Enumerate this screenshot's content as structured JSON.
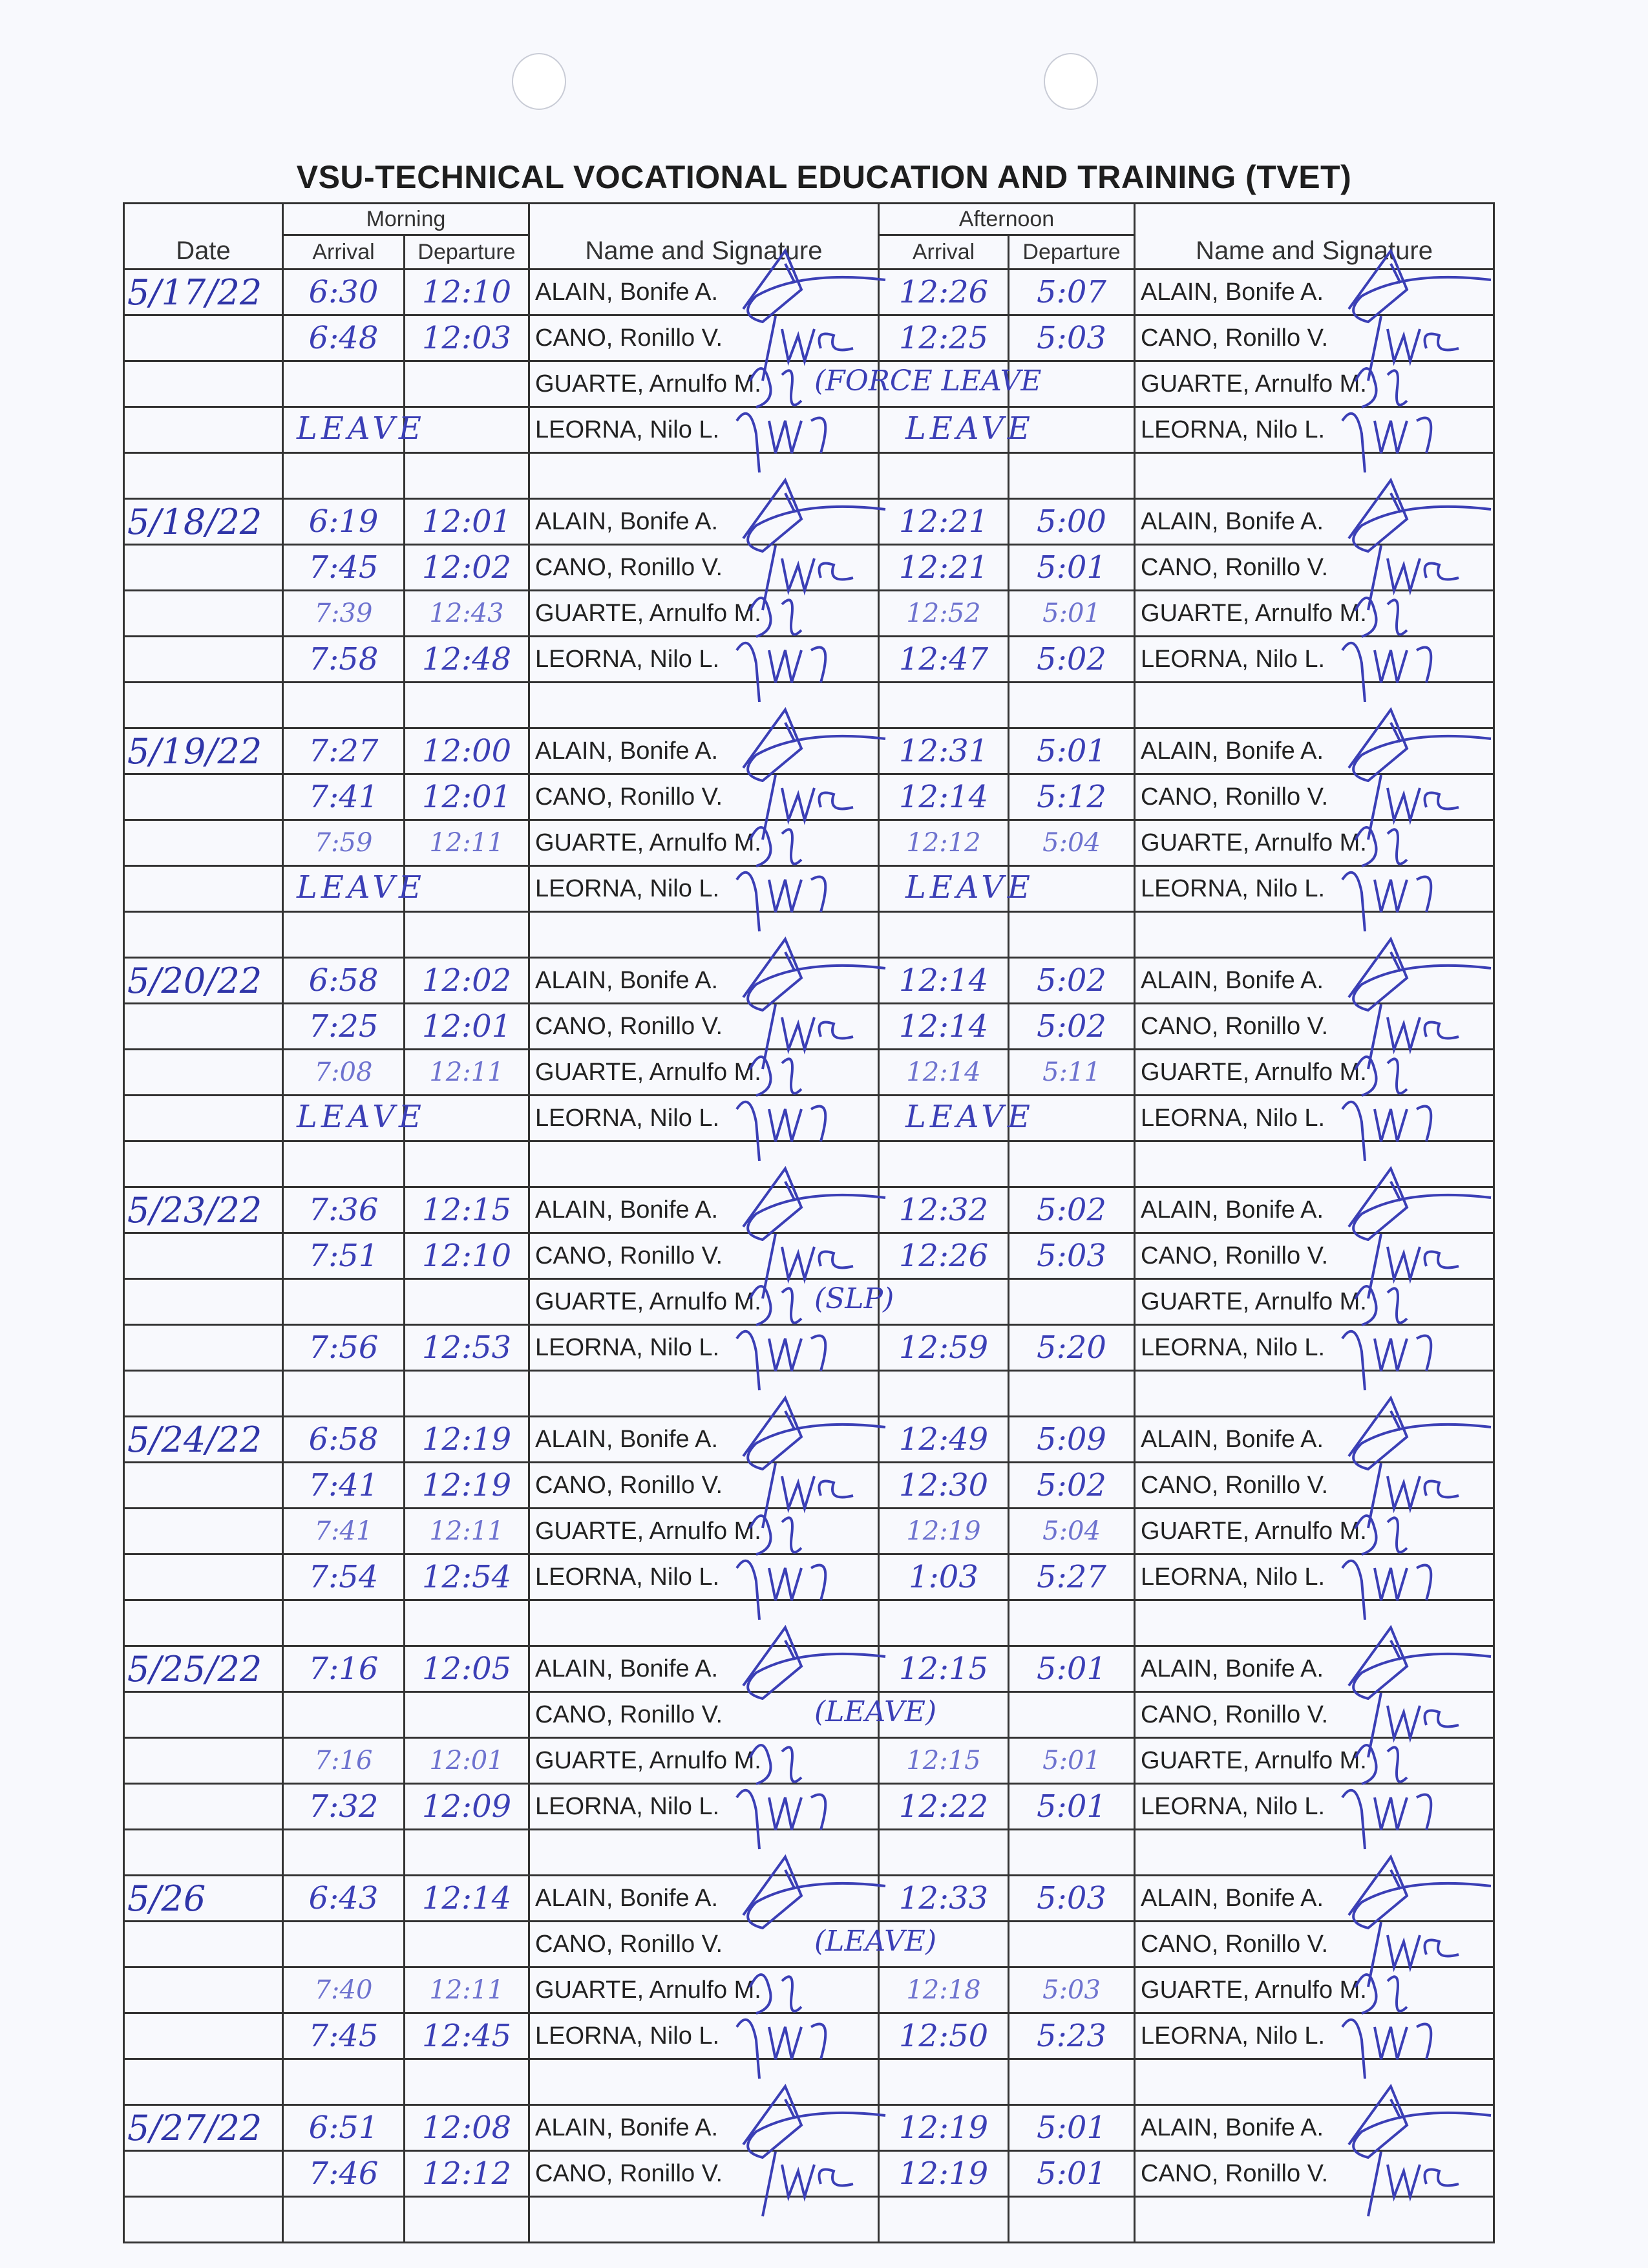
{
  "title": "VSU-TECHNICAL VOCATIONAL EDUCATION AND TRAINING (TVET)",
  "headers": {
    "date": "Date",
    "morning": "Morning",
    "afternoon": "Afternoon",
    "arrival": "Arrival",
    "departure": "Departure",
    "name_signature": "Name and Signature"
  },
  "ink_color": "#3b3fb6",
  "days": [
    {
      "date": "5/17/22",
      "rows": [
        {
          "name": "ALAIN, Bonife A.",
          "am_in": "6:30",
          "am_out": "12:10",
          "pm_in": "12:26",
          "pm_out": "5:07"
        },
        {
          "name": "CANO, Ronillo V.",
          "am_in": "6:48",
          "am_out": "12:03",
          "pm_in": "12:25",
          "pm_out": "5:03"
        },
        {
          "name": "GUARTE, Arnulfo M.",
          "am_in": "",
          "am_out": "",
          "pm_in": "",
          "pm_out": "",
          "note": "(FORCE LEAVE"
        },
        {
          "name": "LEORNA, Nilo L.",
          "am_leave": "LEAVE",
          "pm_leave": "LEAVE"
        }
      ]
    },
    {
      "date": "5/18/22",
      "rows": [
        {
          "name": "ALAIN, Bonife A.",
          "am_in": "6:19",
          "am_out": "12:01",
          "pm_in": "12:21",
          "pm_out": "5:00"
        },
        {
          "name": "CANO, Ronillo V.",
          "am_in": "7:45",
          "am_out": "12:02",
          "pm_in": "12:21",
          "pm_out": "5:01"
        },
        {
          "name": "GUARTE, Arnulfo M.",
          "am_in": "7:39",
          "am_out": "12:43",
          "pm_in": "12:52",
          "pm_out": "5:01"
        },
        {
          "name": "LEORNA, Nilo L.",
          "am_in": "7:58",
          "am_out": "12:48",
          "pm_in": "12:47",
          "pm_out": "5:02"
        }
      ]
    },
    {
      "date": "5/19/22",
      "rows": [
        {
          "name": "ALAIN, Bonife A.",
          "am_in": "7:27",
          "am_out": "12:00",
          "pm_in": "12:31",
          "pm_out": "5:01"
        },
        {
          "name": "CANO, Ronillo V.",
          "am_in": "7:41",
          "am_out": "12:01",
          "pm_in": "12:14",
          "pm_out": "5:12"
        },
        {
          "name": "GUARTE, Arnulfo M.",
          "am_in": "7:59",
          "am_out": "12:11",
          "pm_in": "12:12",
          "pm_out": "5:04"
        },
        {
          "name": "LEORNA, Nilo L.",
          "am_leave": "LEAVE",
          "pm_leave": "LEAVE"
        }
      ]
    },
    {
      "date": "5/20/22",
      "rows": [
        {
          "name": "ALAIN, Bonife A.",
          "am_in": "6:58",
          "am_out": "12:02",
          "pm_in": "12:14",
          "pm_out": "5:02"
        },
        {
          "name": "CANO, Ronillo V.",
          "am_in": "7:25",
          "am_out": "12:01",
          "pm_in": "12:14",
          "pm_out": "5:02"
        },
        {
          "name": "GUARTE, Arnulfo M.",
          "am_in": "7:08",
          "am_out": "12:11",
          "pm_in": "12:14",
          "pm_out": "5:11"
        },
        {
          "name": "LEORNA, Nilo L.",
          "am_leave": "LEAVE",
          "pm_leave": "LEAVE"
        }
      ]
    },
    {
      "date": "5/23/22",
      "rows": [
        {
          "name": "ALAIN, Bonife A.",
          "am_in": "7:36",
          "am_out": "12:15",
          "pm_in": "12:32",
          "pm_out": "5:02"
        },
        {
          "name": "CANO, Ronillo V.",
          "am_in": "7:51",
          "am_out": "12:10",
          "pm_in": "12:26",
          "pm_out": "5:03"
        },
        {
          "name": "GUARTE, Arnulfo M.",
          "am_in": "",
          "am_out": "",
          "pm_in": "",
          "pm_out": "",
          "note": "(SLP)"
        },
        {
          "name": "LEORNA, Nilo L.",
          "am_in": "7:56",
          "am_out": "12:53",
          "pm_in": "12:59",
          "pm_out": "5:20"
        }
      ]
    },
    {
      "date": "5/24/22",
      "rows": [
        {
          "name": "ALAIN, Bonife A.",
          "am_in": "6:58",
          "am_out": "12:19",
          "pm_in": "12:49",
          "pm_out": "5:09"
        },
        {
          "name": "CANO, Ronillo V.",
          "am_in": "7:41",
          "am_out": "12:19",
          "pm_in": "12:30",
          "pm_out": "5:02"
        },
        {
          "name": "GUARTE, Arnulfo M.",
          "am_in": "7:41",
          "am_out": "12:11",
          "pm_in": "12:19",
          "pm_out": "5:04"
        },
        {
          "name": "LEORNA, Nilo L.",
          "am_in": "7:54",
          "am_out": "12:54",
          "pm_in": "1:03",
          "pm_out": "5:27"
        }
      ]
    },
    {
      "date": "5/25/22",
      "rows": [
        {
          "name": "ALAIN, Bonife A.",
          "am_in": "7:16",
          "am_out": "12:05",
          "pm_in": "12:15",
          "pm_out": "5:01"
        },
        {
          "name": "CANO, Ronillo V.",
          "am_in": "",
          "am_out": "",
          "pm_in": "",
          "pm_out": "",
          "note": "(LEAVE)"
        },
        {
          "name": "GUARTE, Arnulfo M.",
          "am_in": "7:16",
          "am_out": "12:01",
          "pm_in": "12:15",
          "pm_out": "5:01"
        },
        {
          "name": "LEORNA, Nilo L.",
          "am_in": "7:32",
          "am_out": "12:09",
          "pm_in": "12:22",
          "pm_out": "5:01"
        }
      ]
    },
    {
      "date": "5/26",
      "rows": [
        {
          "name": "ALAIN, Bonife A.",
          "am_in": "6:43",
          "am_out": "12:14",
          "pm_in": "12:33",
          "pm_out": "5:03"
        },
        {
          "name": "CANO, Ronillo V.",
          "am_in": "",
          "am_out": "",
          "pm_in": "",
          "pm_out": "",
          "note": "(LEAVE)"
        },
        {
          "name": "GUARTE, Arnulfo M.",
          "am_in": "7:40",
          "am_out": "12:11",
          "pm_in": "12:18",
          "pm_out": "5:03"
        },
        {
          "name": "LEORNA, Nilo L.",
          "am_in": "7:45",
          "am_out": "12:45",
          "pm_in": "12:50",
          "pm_out": "5:23"
        }
      ]
    },
    {
      "date": "5/27/22",
      "rows": [
        {
          "name": "ALAIN, Bonife A.",
          "am_in": "6:51",
          "am_out": "12:08",
          "pm_in": "12:19",
          "pm_out": "5:01"
        },
        {
          "name": "CANO, Ronillo V.",
          "am_in": "7:46",
          "am_out": "12:12",
          "pm_in": "12:19",
          "pm_out": "5:01"
        }
      ]
    }
  ]
}
